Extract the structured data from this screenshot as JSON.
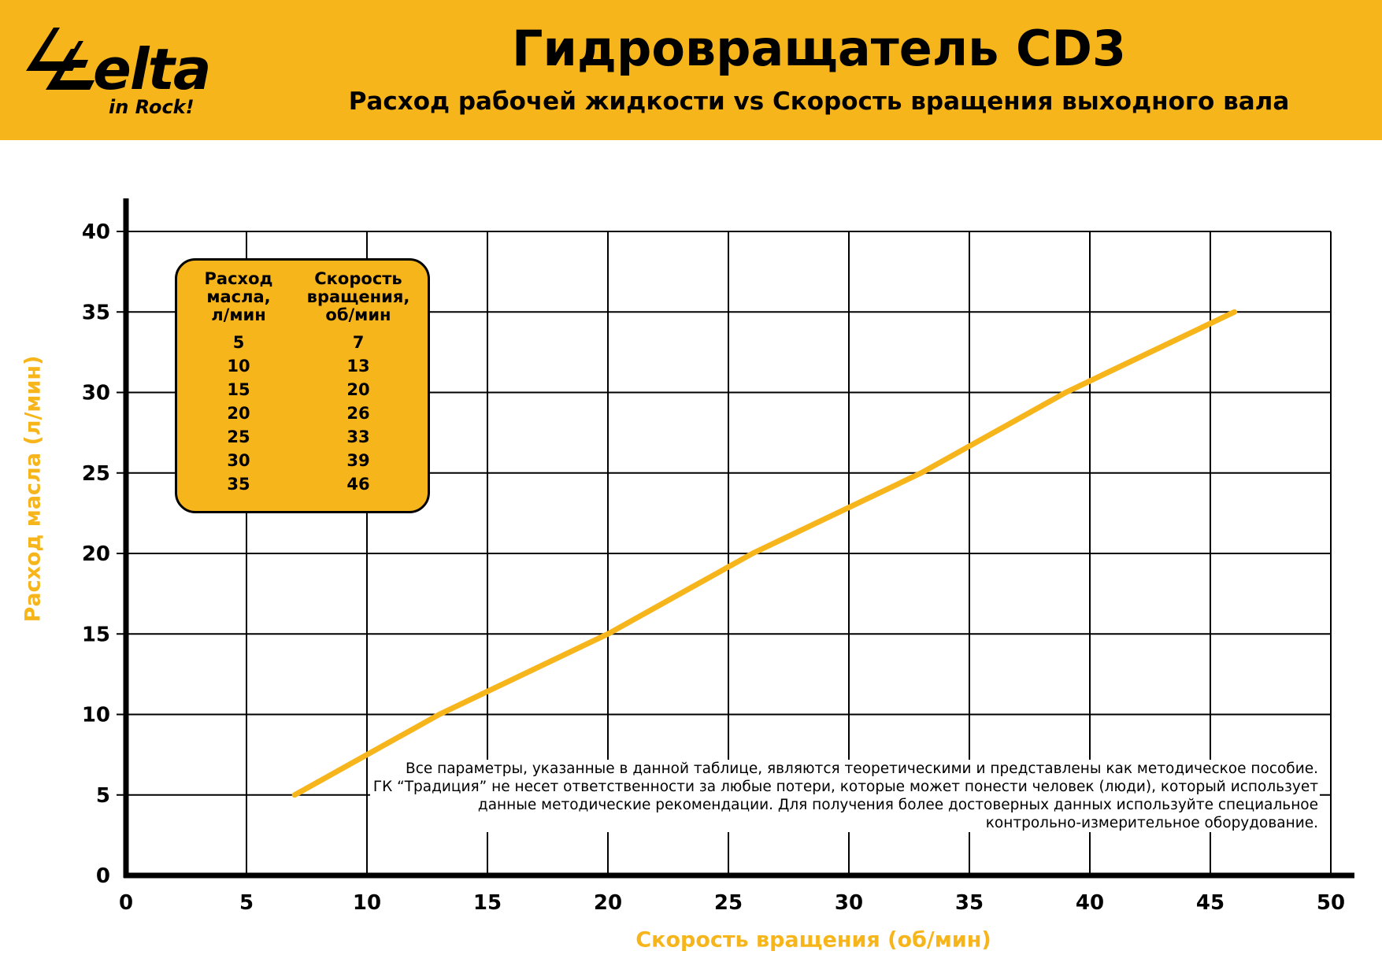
{
  "header": {
    "title": "Гидровращатель CD3",
    "subtitle": "Расход рабочей жидкости vs Скорость вращения выходного вала",
    "brand_color": "#f7b51c"
  },
  "logo": {
    "word": "elta",
    "tagline": "in Rock!",
    "icon": "delta-logo-icon"
  },
  "colors": {
    "accent": "#f7b51c",
    "line": "#f7b51c",
    "grid": "#000000",
    "text": "#000000"
  },
  "chart_data": {
    "type": "line",
    "xlabel": "Скорость вращения (об/мин)",
    "ylabel": "Расход масла (л/мин)",
    "xlim": [
      0,
      50
    ],
    "ylim": [
      0,
      40
    ],
    "x_ticks": [
      "0",
      "5",
      "10",
      "15",
      "20",
      "25",
      "30",
      "35",
      "40",
      "45",
      "50"
    ],
    "y_ticks": [
      "0",
      "5",
      "10",
      "15",
      "20",
      "25",
      "30",
      "35",
      "40"
    ],
    "grid": true,
    "series": [
      {
        "x": [
          7,
          13,
          20,
          26,
          33,
          39,
          46
        ],
        "y": [
          5,
          10,
          15,
          20,
          25,
          30,
          35
        ]
      }
    ]
  },
  "table": {
    "header_flow": [
      "Расход",
      "масла,",
      "л/мин"
    ],
    "header_speed": [
      "Скорость",
      "вращения,",
      "об/мин"
    ],
    "flow": [
      "5",
      "10",
      "15",
      "20",
      "25",
      "30",
      "35"
    ],
    "speed": [
      "7",
      "13",
      "20",
      "26",
      "33",
      "39",
      "46"
    ]
  },
  "disclaimer": [
    "Все параметры, указанные в данной таблице, являются теоретическими и представлены как методическое пособие.",
    "ГК “Традиция” не несет ответственности за любые потери, которые может понести человек (люди), который использует",
    "данные методические рекомендации.  Для получения более достоверных данных используйте специальное",
    "контрольно-измерительное оборудование."
  ]
}
